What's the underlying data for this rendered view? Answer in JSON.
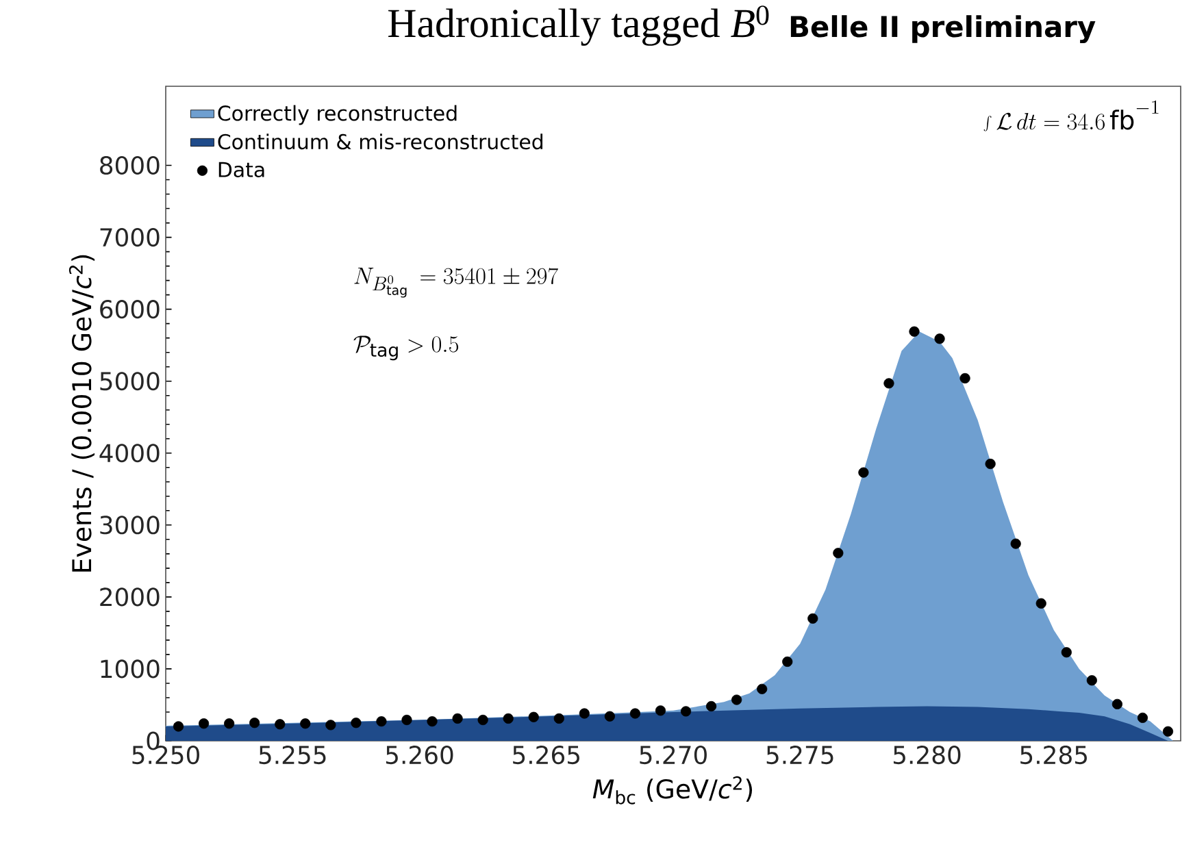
{
  "chart_data": {
    "type": "area",
    "title": "Hadronically tagged *B*$^{0}$",
    "subtitle": "Belle II preliminary",
    "xlabel": "*M*$_{bc}$ (GeV/*c*$^{2}$)",
    "ylabel": "Events / (0.0010 GeV/*c*$^{2}$)",
    "annotations": [
      "\\int\\mathcal{L}\\,dt = 34.6\\,\\mathrm{fb}^{-1}",
      "N_{B^0_{\\mathrm{tag}}}\\,=35401 \\pm 297",
      "\\mathcal{P}_{\\mathrm{tag}} > 0.5"
    ],
    "xlim": [
      5.25,
      5.29
    ],
    "ylim": [
      0,
      9100
    ],
    "xticks": [
      {
        "value": 5.25,
        "label": "5.250"
      },
      {
        "value": 5.255,
        "label": "5.255"
      },
      {
        "value": 5.26,
        "label": "5.260"
      },
      {
        "value": 5.265,
        "label": "5.265"
      },
      {
        "value": 5.27,
        "label": "5.270"
      },
      {
        "value": 5.275,
        "label": "5.275"
      },
      {
        "value": 5.28,
        "label": "5.280"
      },
      {
        "value": 5.285,
        "label": "5.285"
      }
    ],
    "yticks": [
      0,
      1000,
      2000,
      3000,
      4000,
      5000,
      6000,
      7000,
      8000
    ],
    "grid": false,
    "legend": "top left",
    "series": [
      {
        "name": "Correctly reconstructed",
        "color": "#6f9fd0",
        "x": [
          5.25,
          5.255,
          5.26,
          5.265,
          5.268,
          5.27,
          5.271,
          5.272,
          5.273,
          5.274,
          5.275,
          5.276,
          5.277,
          5.278,
          5.279,
          5.2797,
          5.2805,
          5.281,
          5.282,
          5.283,
          5.284,
          5.285,
          5.286,
          5.287,
          5.288,
          5.2888,
          5.2897
        ],
        "values": [
          210,
          250,
          290,
          350,
          390,
          420,
          480,
          540,
          660,
          910,
          1350,
          2100,
          3150,
          4340,
          5420,
          5690,
          5550,
          5320,
          4460,
          3320,
          2300,
          1540,
          1000,
          630,
          400,
          270,
          0
        ]
      },
      {
        "name": "Continuum & mis-reconstructed",
        "color": "#1f4b8a",
        "x": [
          5.25,
          5.255,
          5.26,
          5.265,
          5.27,
          5.275,
          5.278,
          5.28,
          5.282,
          5.284,
          5.2852,
          5.286,
          5.287,
          5.288,
          5.2888,
          5.2895
        ],
        "values": [
          200,
          240,
          290,
          340,
          400,
          450,
          470,
          480,
          470,
          440,
          410,
          390,
          340,
          230,
          110,
          0
        ]
      },
      {
        "name": "Data",
        "type": "scatter",
        "color": "#000000",
        "x": [
          5.2505,
          5.2515,
          5.2525,
          5.2535,
          5.2545,
          5.2555,
          5.2565,
          5.2575,
          5.2585,
          5.2595,
          5.2605,
          5.2615,
          5.2625,
          5.2635,
          5.2645,
          5.2655,
          5.2665,
          5.2675,
          5.2685,
          5.2695,
          5.2705,
          5.2715,
          5.2725,
          5.2735,
          5.2745,
          5.2755,
          5.2765,
          5.2775,
          5.2785,
          5.2795,
          5.2805,
          5.2815,
          5.2825,
          5.2835,
          5.2845,
          5.2855,
          5.2865,
          5.2875,
          5.2885,
          5.2895
        ],
        "values": [
          200,
          240,
          240,
          250,
          230,
          240,
          220,
          250,
          270,
          290,
          270,
          310,
          290,
          310,
          330,
          310,
          380,
          340,
          380,
          420,
          410,
          480,
          570,
          720,
          1100,
          1700,
          2610,
          3730,
          4970,
          5690,
          5590,
          5040,
          3850,
          2740,
          1910,
          1230,
          840,
          510,
          320,
          130
        ]
      }
    ]
  }
}
